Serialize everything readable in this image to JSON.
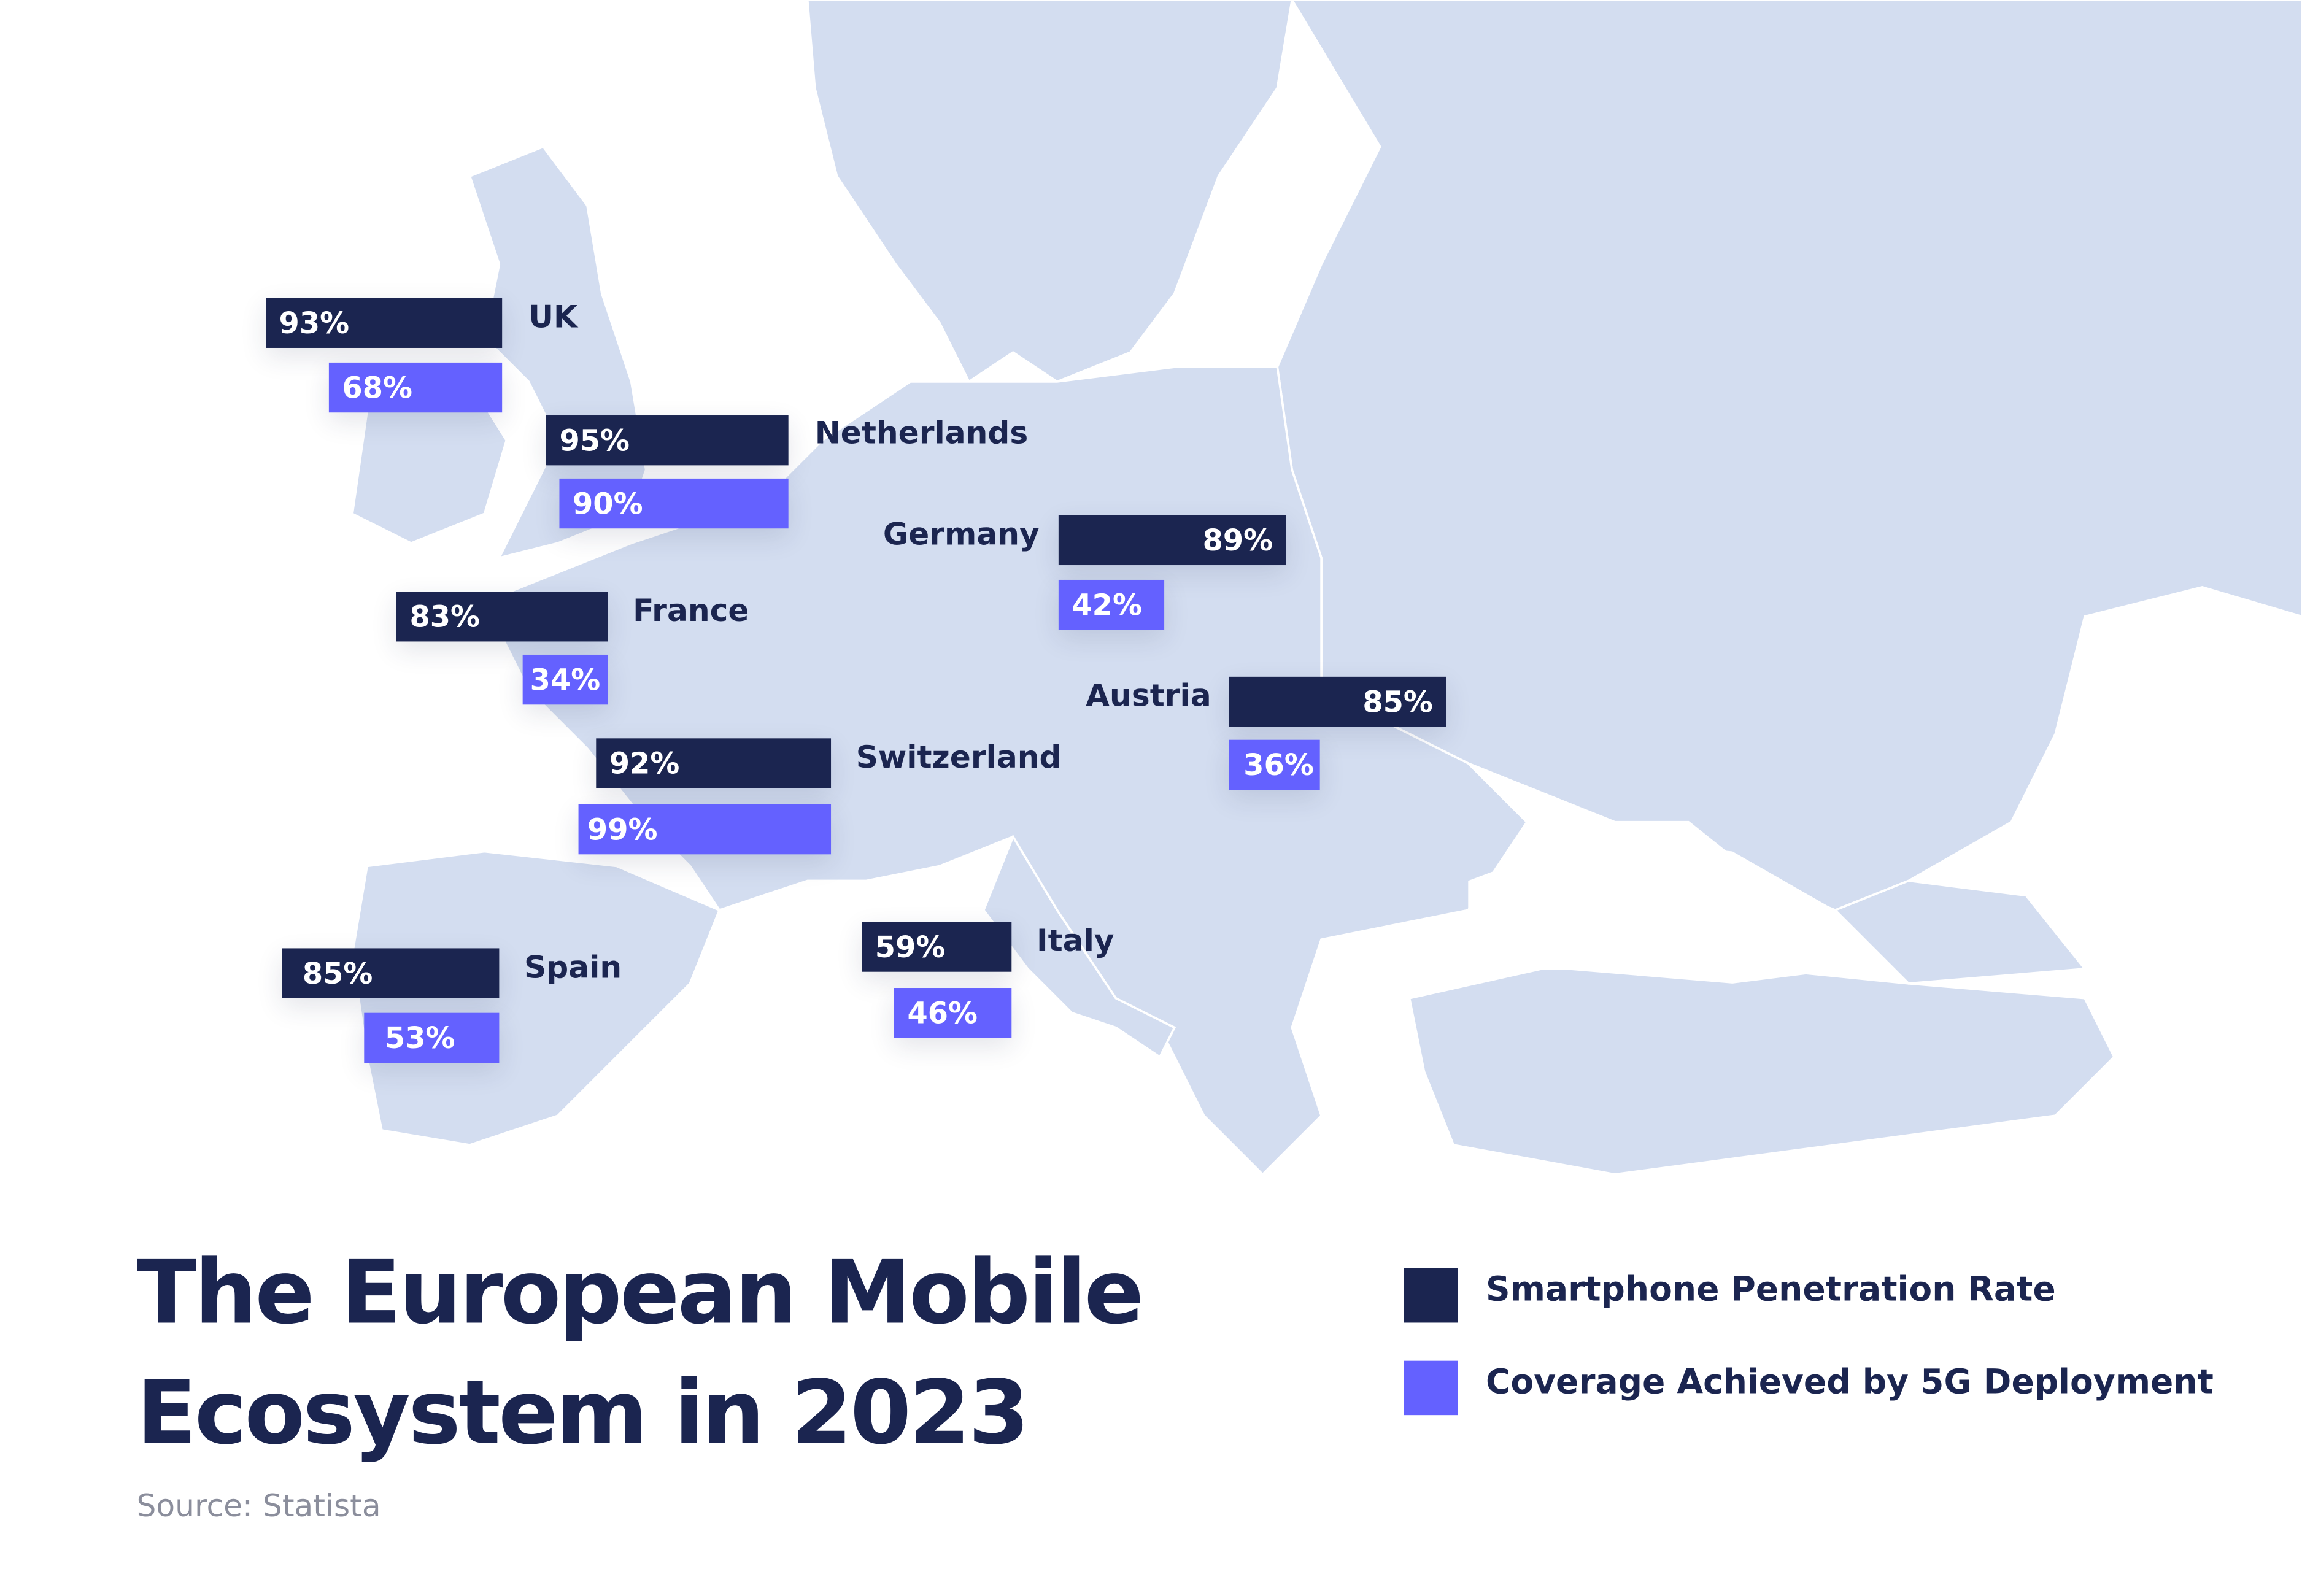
{
  "title_line1": "The European Mobile",
  "title_line2": "Ecosystem in 2023",
  "source": "Source: Statista",
  "colors": {
    "smartphone": "#1b2550",
    "coverage_5g": "#6461ff",
    "land": "#d3ddf0"
  },
  "legend": [
    {
      "label": "Smartphone Penetration Rate",
      "color": "#1b2550"
    },
    {
      "label": "Coverage Achieved by 5G Deployment",
      "color": "#6461ff"
    }
  ],
  "countries": [
    {
      "name": "UK",
      "smartphone": "93%",
      "coverage_5g": "68%"
    },
    {
      "name": "Netherlands",
      "smartphone": "95%",
      "coverage_5g": "90%"
    },
    {
      "name": "Germany",
      "smartphone": "89%",
      "coverage_5g": "42%"
    },
    {
      "name": "France",
      "smartphone": "83%",
      "coverage_5g": "34%"
    },
    {
      "name": "Austria",
      "smartphone": "85%",
      "coverage_5g": "36%"
    },
    {
      "name": "Switzerland",
      "smartphone": "92%",
      "coverage_5g": "99%"
    },
    {
      "name": "Spain",
      "smartphone": "85%",
      "coverage_5g": "53%"
    },
    {
      "name": "Italy",
      "smartphone": "59%",
      "coverage_5g": "46%"
    }
  ]
}
